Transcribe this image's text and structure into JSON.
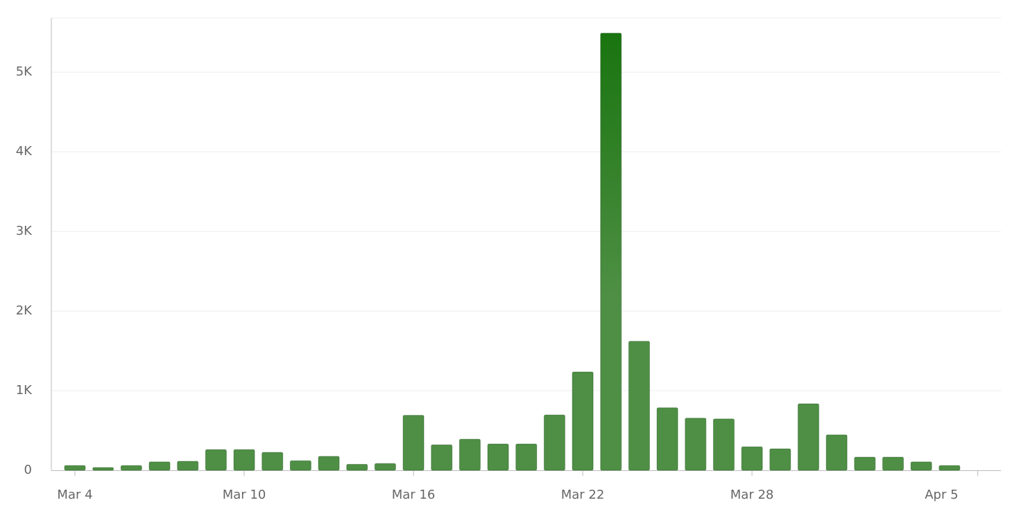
{
  "chart_data": {
    "type": "bar",
    "categories": [
      "Mar 4",
      null,
      null,
      null,
      null,
      null,
      "Mar 10",
      null,
      null,
      null,
      null,
      null,
      "Mar 16",
      null,
      null,
      null,
      null,
      null,
      "Mar 22",
      null,
      null,
      null,
      null,
      null,
      "Mar 28",
      null,
      null,
      null,
      null,
      null,
      null,
      null,
      "Apr 5"
    ],
    "values": [
      60,
      35,
      60,
      105,
      113,
      260,
      260,
      225,
      120,
      175,
      75,
      85,
      690,
      320,
      390,
      330,
      330,
      695,
      1235,
      5490,
      1620,
      785,
      655,
      645,
      295,
      270,
      835,
      445,
      165,
      165,
      105,
      60,
      null
    ],
    "color": "#4f8f45",
    "ylim": [
      0,
      5680
    ],
    "yticks": [
      0,
      {
        "value": 1000,
        "label": "1K"
      },
      {
        "value": 2000,
        "label": "2K"
      },
      {
        "value": 3000,
        "label": "3K"
      },
      {
        "value": 4000,
        "label": "4K"
      },
      {
        "value": 5000,
        "label": "5K"
      }
    ],
    "grid": true
  }
}
